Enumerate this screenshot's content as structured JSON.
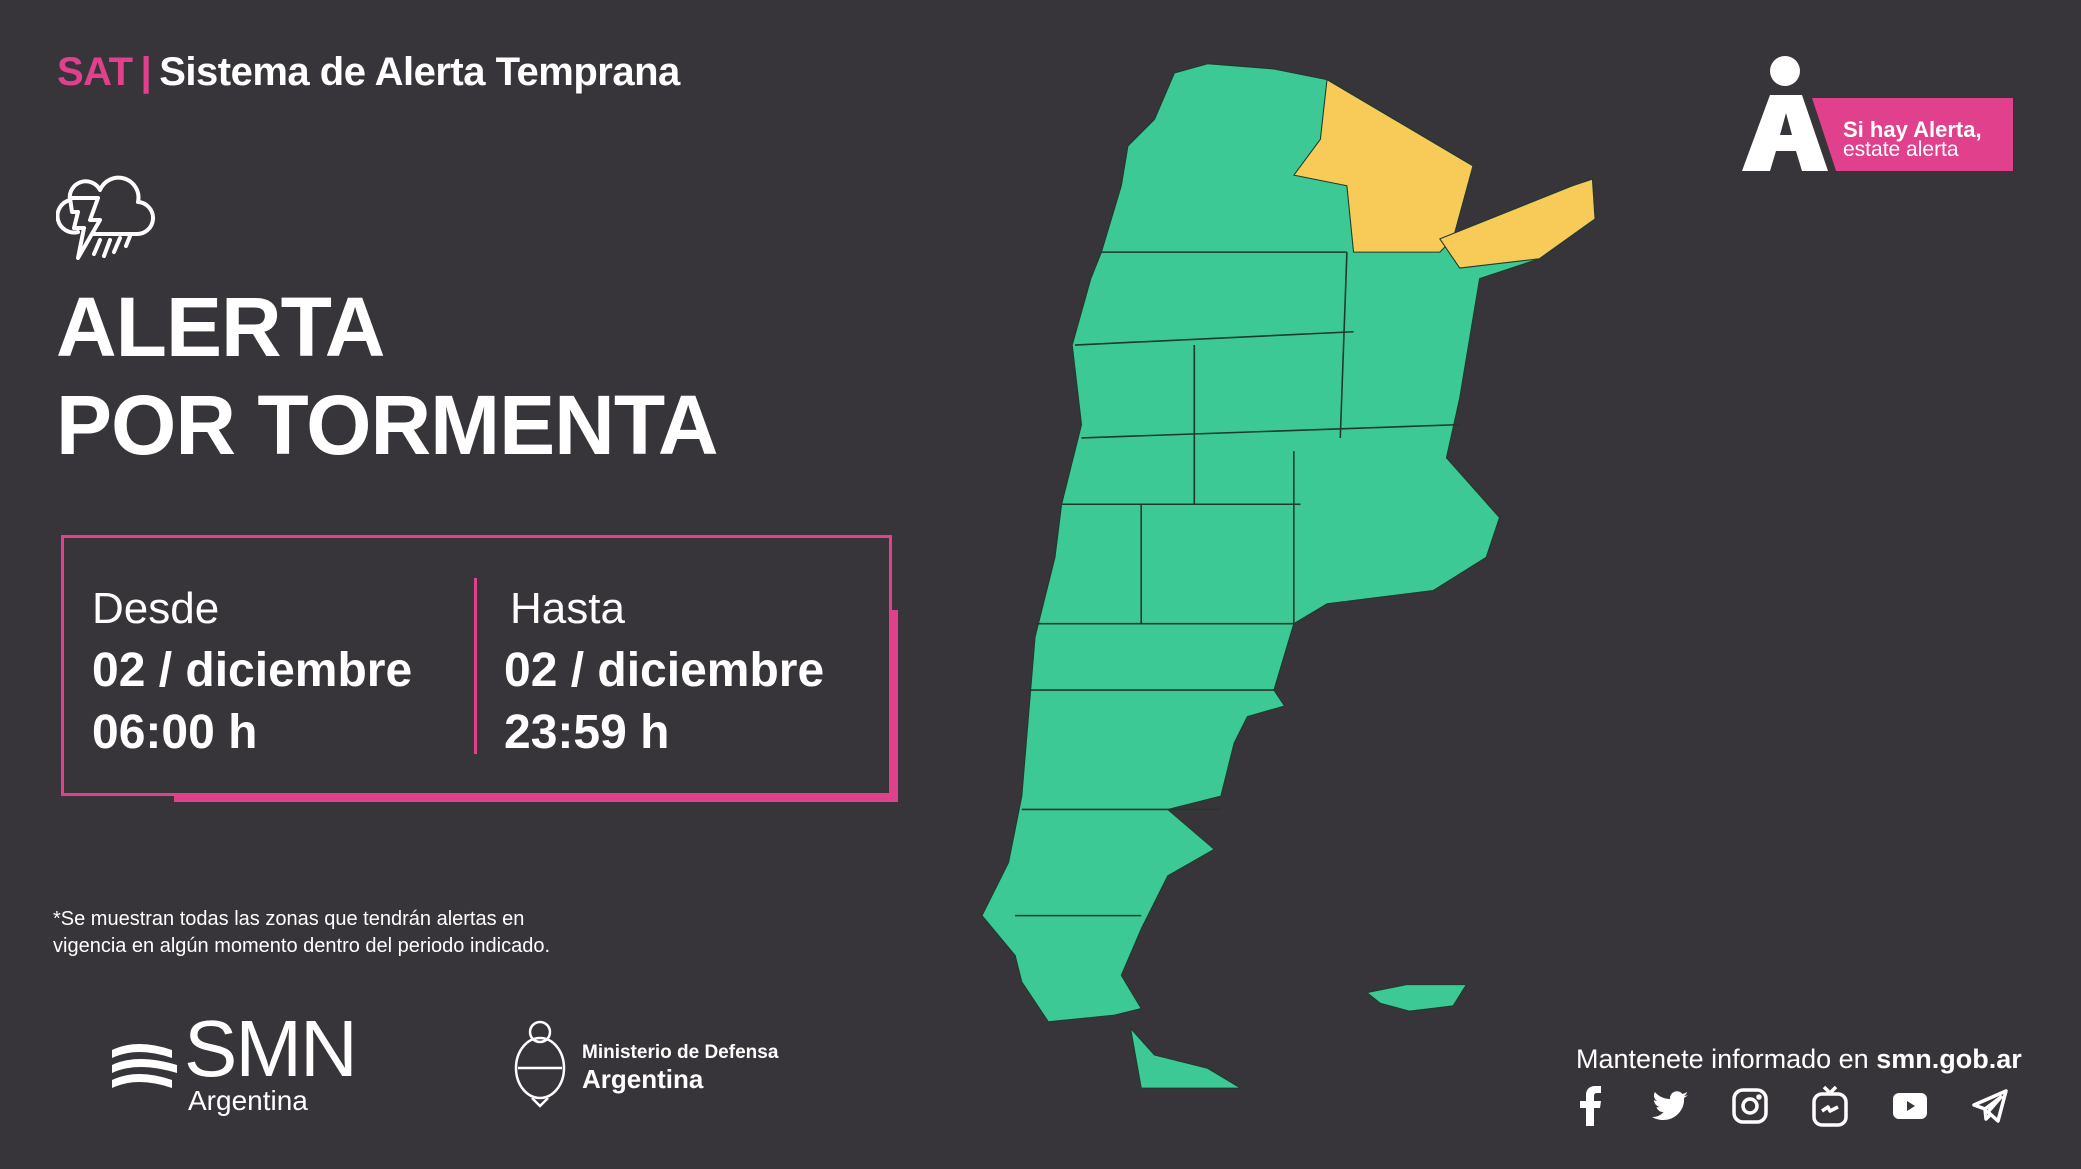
{
  "header": {
    "prefix": "SAT",
    "separator": "|",
    "title": "Sistema de Alerta Temprana"
  },
  "alert": {
    "icon": "storm-cloud-icon",
    "line1": "ALERTA",
    "line2": "POR TORMENTA"
  },
  "period": {
    "from": {
      "label": "Desde",
      "date": "02 / diciembre",
      "time": "06:00 h"
    },
    "to": {
      "label": "Hasta",
      "date": "02 / diciembre",
      "time": "23:59 h"
    }
  },
  "note": {
    "line1": "*Se muestran todas las zonas que tendrán alertas en",
    "line2": "vigencia en algún momento dentro del periodo indicado."
  },
  "logos": {
    "smn": {
      "name": "SMN",
      "sub": "Argentina"
    },
    "ministry": {
      "line1": "Ministerio de Defensa",
      "line2": "Argentina"
    }
  },
  "brand": {
    "line1": "Si hay Alerta,",
    "line2": "estate alerta"
  },
  "footer": {
    "text": "Mantenete informado en ",
    "site": "smn.gob.ar",
    "social": [
      "facebook-icon",
      "twitter-icon",
      "instagram-icon",
      "igtv-icon",
      "youtube-icon",
      "telegram-icon"
    ]
  },
  "colors": {
    "background": "#38353a",
    "accent": "#e0408c",
    "no_alert": "#3cc995",
    "alert_yellow": "#f8cb58"
  },
  "map": {
    "legend": "none",
    "alert_regions": [
      "northeast (Formosa, Chaco north, Corrientes, Misiones)"
    ]
  }
}
